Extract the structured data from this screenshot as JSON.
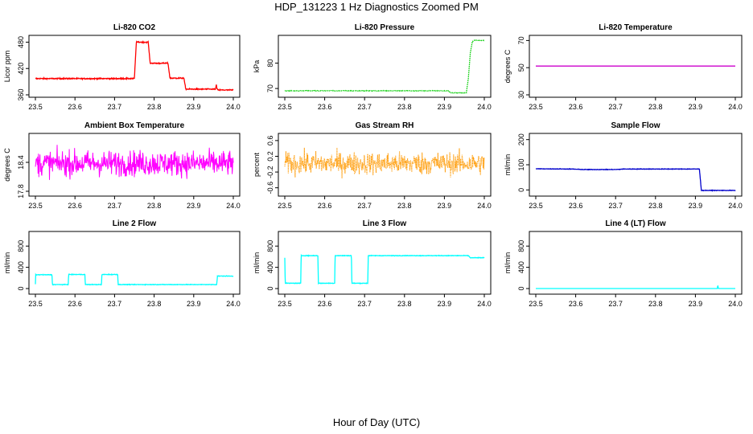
{
  "title": "HDP_131223  1 Hz Diagnostics Zoomed PM",
  "xlabel": "Hour of Day (UTC)",
  "chart_data": [
    {
      "type": "line",
      "title": "Li-820 CO2",
      "ylabel": "Licor ppm",
      "color": "#ff0000",
      "xlim": [
        23.5,
        24.0
      ],
      "x_ticks": [
        23.5,
        23.6,
        23.7,
        23.8,
        23.9,
        24.0
      ],
      "ylim": [
        360,
        490
      ],
      "y_ticks": [
        360,
        420,
        480
      ],
      "series": [
        {
          "style": "steps",
          "noise": 1.2,
          "x": [
            23.5,
            23.75,
            23.755,
            23.785,
            23.79,
            23.835,
            23.84,
            23.875,
            23.88,
            23.955,
            23.957,
            23.959,
            23.962,
            24.0
          ],
          "y": [
            397,
            397,
            480,
            480,
            432,
            432,
            398,
            398,
            373,
            373,
            383,
            373,
            371,
            371
          ]
        }
      ]
    },
    {
      "type": "line",
      "title": "Li-820 Pressure",
      "ylabel": "kPa",
      "color": "#00cc00",
      "xlim": [
        23.5,
        24.0
      ],
      "x_ticks": [
        23.5,
        23.6,
        23.7,
        23.8,
        23.9,
        24.0
      ],
      "ylim": [
        67.5,
        90
      ],
      "y_ticks": [
        70,
        80
      ],
      "series": [
        {
          "style": "dotted",
          "noise": 0.1,
          "x": [
            23.5,
            23.91,
            23.915,
            23.955,
            23.96,
            23.965,
            23.97,
            23.975,
            24.0
          ],
          "y": [
            69.1,
            69.1,
            68.3,
            68.3,
            74,
            84,
            88.5,
            89,
            89
          ]
        }
      ]
    },
    {
      "type": "line",
      "title": "Li-820 Temperature",
      "ylabel": "degrees C",
      "color": "#cc00cc",
      "xlim": [
        23.5,
        24.0
      ],
      "x_ticks": [
        23.5,
        23.6,
        23.7,
        23.8,
        23.9,
        24.0
      ],
      "ylim": [
        30,
        72
      ],
      "y_ticks": [
        30,
        50,
        70
      ],
      "series": [
        {
          "style": "line",
          "noise": 0,
          "x": [
            23.5,
            24.0
          ],
          "y": [
            51.2,
            51.2
          ]
        }
      ]
    },
    {
      "type": "line",
      "title": "Ambient Box Temperature",
      "ylabel": "degrees C",
      "color": "#ff00ff",
      "xlim": [
        23.5,
        24.0
      ],
      "x_ticks": [
        23.5,
        23.6,
        23.7,
        23.8,
        23.9,
        24.0
      ],
      "ylim": [
        17.75,
        18.95
      ],
      "y_ticks": [
        17.8,
        18.4
      ],
      "series": [
        {
          "style": "noise",
          "noise": 0.26,
          "x": [
            23.5,
            24.0
          ],
          "y": [
            18.38,
            18.38
          ]
        }
      ]
    },
    {
      "type": "line",
      "title": "Gas Stream RH",
      "ylabel": "percent",
      "color": "#ff9900",
      "xlim": [
        23.5,
        24.0
      ],
      "x_ticks": [
        23.5,
        23.6,
        23.7,
        23.8,
        23.9,
        24.0
      ],
      "ylim": [
        -0.75,
        0.72
      ],
      "y_ticks": [
        -0.6,
        -0.2,
        0.2,
        0.6
      ],
      "series": [
        {
          "style": "noise",
          "noise": 0.28,
          "x": [
            23.5,
            24.0
          ],
          "y": [
            0.02,
            0.02
          ]
        }
      ]
    },
    {
      "type": "line",
      "title": "Sample Flow",
      "ylabel": "ml/min",
      "color": "#0000cc",
      "xlim": [
        23.5,
        24.0
      ],
      "x_ticks": [
        23.5,
        23.6,
        23.7,
        23.8,
        23.9,
        24.0
      ],
      "ylim": [
        -15,
        215
      ],
      "y_ticks": [
        0,
        100,
        200
      ],
      "series": [
        {
          "style": "line",
          "noise": 1.0,
          "x": [
            23.5,
            23.59,
            23.62,
            23.7,
            23.72,
            23.91,
            23.915,
            23.925,
            24.0
          ],
          "y": [
            84,
            83,
            81,
            81,
            83,
            83,
            -2,
            -2,
            -2
          ]
        }
      ]
    },
    {
      "type": "line",
      "title": "Line 2 Flow",
      "ylabel": "ml/min",
      "color": "#00ffff",
      "xlim": [
        23.5,
        24.0
      ],
      "x_ticks": [
        23.5,
        23.6,
        23.7,
        23.8,
        23.9,
        24.0
      ],
      "ylim": [
        -60,
        1030
      ],
      "y_ticks": [
        0,
        400,
        800
      ],
      "series": [
        {
          "style": "steps",
          "noise": 5,
          "x": [
            23.5,
            23.5,
            23.542,
            23.543,
            23.583,
            23.584,
            23.625,
            23.626,
            23.667,
            23.668,
            23.708,
            23.709,
            23.958,
            23.96,
            24.0
          ],
          "y": [
            80,
            260,
            260,
            75,
            75,
            265,
            265,
            75,
            75,
            265,
            265,
            75,
            75,
            235,
            235
          ]
        }
      ]
    },
    {
      "type": "line",
      "title": "Line 3 Flow",
      "ylabel": "ml/min",
      "color": "#00ffff",
      "xlim": [
        23.5,
        24.0
      ],
      "x_ticks": [
        23.5,
        23.6,
        23.7,
        23.8,
        23.9,
        24.0
      ],
      "ylim": [
        -60,
        1030
      ],
      "y_ticks": [
        0,
        400,
        800
      ],
      "series": [
        {
          "style": "steps",
          "noise": 5,
          "x": [
            23.5,
            23.5,
            23.501,
            23.502,
            23.54,
            23.541,
            23.583,
            23.584,
            23.625,
            23.626,
            23.667,
            23.668,
            23.708,
            23.709,
            23.96,
            23.965,
            24.0
          ],
          "y": [
            580,
            580,
            100,
            100,
            100,
            620,
            620,
            100,
            100,
            620,
            620,
            100,
            100,
            620,
            620,
            580,
            580
          ]
        }
      ]
    },
    {
      "type": "line",
      "title": "Line 4 (LT) Flow",
      "ylabel": "ml/min",
      "color": "#00ffff",
      "xlim": [
        23.5,
        24.0
      ],
      "x_ticks": [
        23.5,
        23.6,
        23.7,
        23.8,
        23.9,
        24.0
      ],
      "ylim": [
        -60,
        1030
      ],
      "y_ticks": [
        0,
        400,
        800
      ],
      "series": [
        {
          "style": "line",
          "noise": 0,
          "x": [
            23.5,
            23.955,
            23.956,
            23.958,
            23.96,
            24.0
          ],
          "y": [
            0,
            0,
            60,
            0,
            0,
            0
          ]
        }
      ]
    }
  ]
}
